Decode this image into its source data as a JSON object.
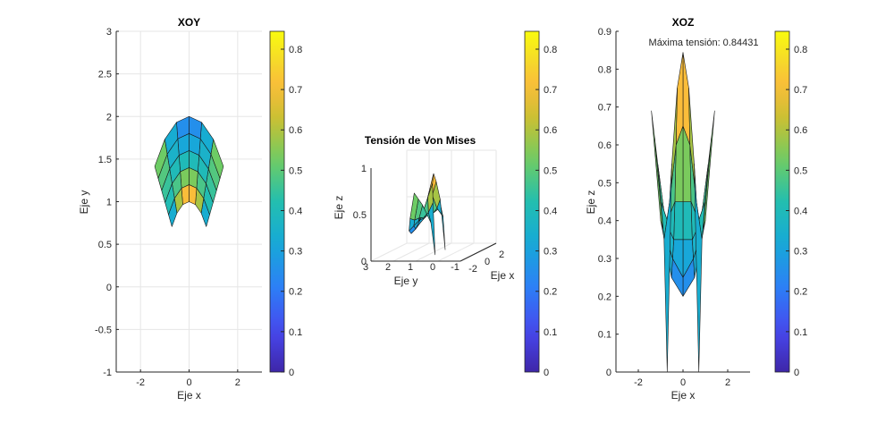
{
  "chart_data": [
    {
      "type": "surface",
      "view": "top (XOY)",
      "title": "XOY",
      "xlabel": "Eje x",
      "ylabel": "Eje y",
      "xlim": [
        -3,
        3
      ],
      "ylim": [
        -1,
        3
      ],
      "xticks": [
        "-2",
        "0",
        "2"
      ],
      "xtick_values": [
        -2,
        0,
        2
      ],
      "yticks": [
        "-1",
        "-0.5",
        "0",
        "0.5",
        "1",
        "1.5",
        "2",
        "2.5",
        "3"
      ],
      "ytick_values": [
        -1,
        -0.5,
        0,
        0.5,
        1,
        1.5,
        2,
        2.5,
        3
      ],
      "grid": true,
      "colorbar": {
        "ticks": [
          "0",
          "0.1",
          "0.2",
          "0.3",
          "0.4",
          "0.5",
          "0.6",
          "0.7",
          "0.8"
        ],
        "tick_values": [
          0,
          0.1,
          0.2,
          0.3,
          0.4,
          0.5,
          0.6,
          0.7,
          0.8
        ],
        "clim": [
          0,
          0.84431
        ]
      }
    },
    {
      "type": "surface",
      "view": "3d",
      "title": "Tensión de Von Mises",
      "xlabel": "Eje x",
      "ylabel": "Eje y",
      "zlabel": "Eje z",
      "xticks": [
        "-2",
        "0",
        "2"
      ],
      "xtick_values": [
        -2,
        0,
        2
      ],
      "yticks": [
        "3",
        "2",
        "1",
        "0",
        "-1"
      ],
      "ytick_values": [
        3,
        2,
        1,
        0,
        -1
      ],
      "zticks": [
        "0",
        "0.5",
        "1"
      ],
      "ztick_values": [
        0,
        0.5,
        1
      ],
      "grid": true,
      "colorbar": {
        "ticks": [
          "0",
          "0.1",
          "0.2",
          "0.3",
          "0.4",
          "0.5",
          "0.6",
          "0.7",
          "0.8"
        ],
        "tick_values": [
          0,
          0.1,
          0.2,
          0.3,
          0.4,
          0.5,
          0.6,
          0.7,
          0.8
        ],
        "clim": [
          0,
          0.84431
        ]
      }
    },
    {
      "type": "surface",
      "view": "side (XOZ)",
      "title": "XOZ",
      "annotation": "Máxima tensión: 0.84431",
      "xlabel": "Eje x",
      "ylabel": "Eje z",
      "xlim": [
        -3,
        3
      ],
      "ylim": [
        0,
        0.9
      ],
      "xticks": [
        "-2",
        "0",
        "2"
      ],
      "xtick_values": [
        -2,
        0,
        2
      ],
      "yticks": [
        "0",
        "0.1",
        "0.2",
        "0.3",
        "0.4",
        "0.5",
        "0.6",
        "0.7",
        "0.8",
        "0.9"
      ],
      "ytick_values": [
        0,
        0.1,
        0.2,
        0.3,
        0.4,
        0.5,
        0.6,
        0.7,
        0.8,
        0.9
      ],
      "grid": false,
      "colorbar": {
        "ticks": [
          "0",
          "0.1",
          "0.2",
          "0.3",
          "0.4",
          "0.5",
          "0.6",
          "0.7",
          "0.8"
        ],
        "tick_values": [
          0,
          0.1,
          0.2,
          0.3,
          0.4,
          0.5,
          0.6,
          0.7,
          0.8
        ],
        "clim": [
          0,
          0.84431
        ]
      }
    }
  ],
  "mesh": {
    "radius_range": [
      1,
      2
    ],
    "angle_range_deg": [
      45,
      135
    ],
    "max_stress": 0.84431,
    "node_stress": [
      [
        0.0,
        0.55,
        0.75,
        0.844,
        0.75,
        0.55,
        0.0
      ],
      [
        0.35,
        0.45,
        0.6,
        0.65,
        0.6,
        0.45,
        0.35
      ],
      [
        0.45,
        0.4,
        0.45,
        0.45,
        0.45,
        0.4,
        0.45
      ],
      [
        0.55,
        0.4,
        0.35,
        0.35,
        0.35,
        0.4,
        0.55
      ],
      [
        0.62,
        0.38,
        0.3,
        0.25,
        0.3,
        0.38,
        0.62
      ],
      [
        0.69,
        0.4,
        0.25,
        0.2,
        0.25,
        0.4,
        0.69
      ]
    ]
  },
  "colormap": "parula"
}
